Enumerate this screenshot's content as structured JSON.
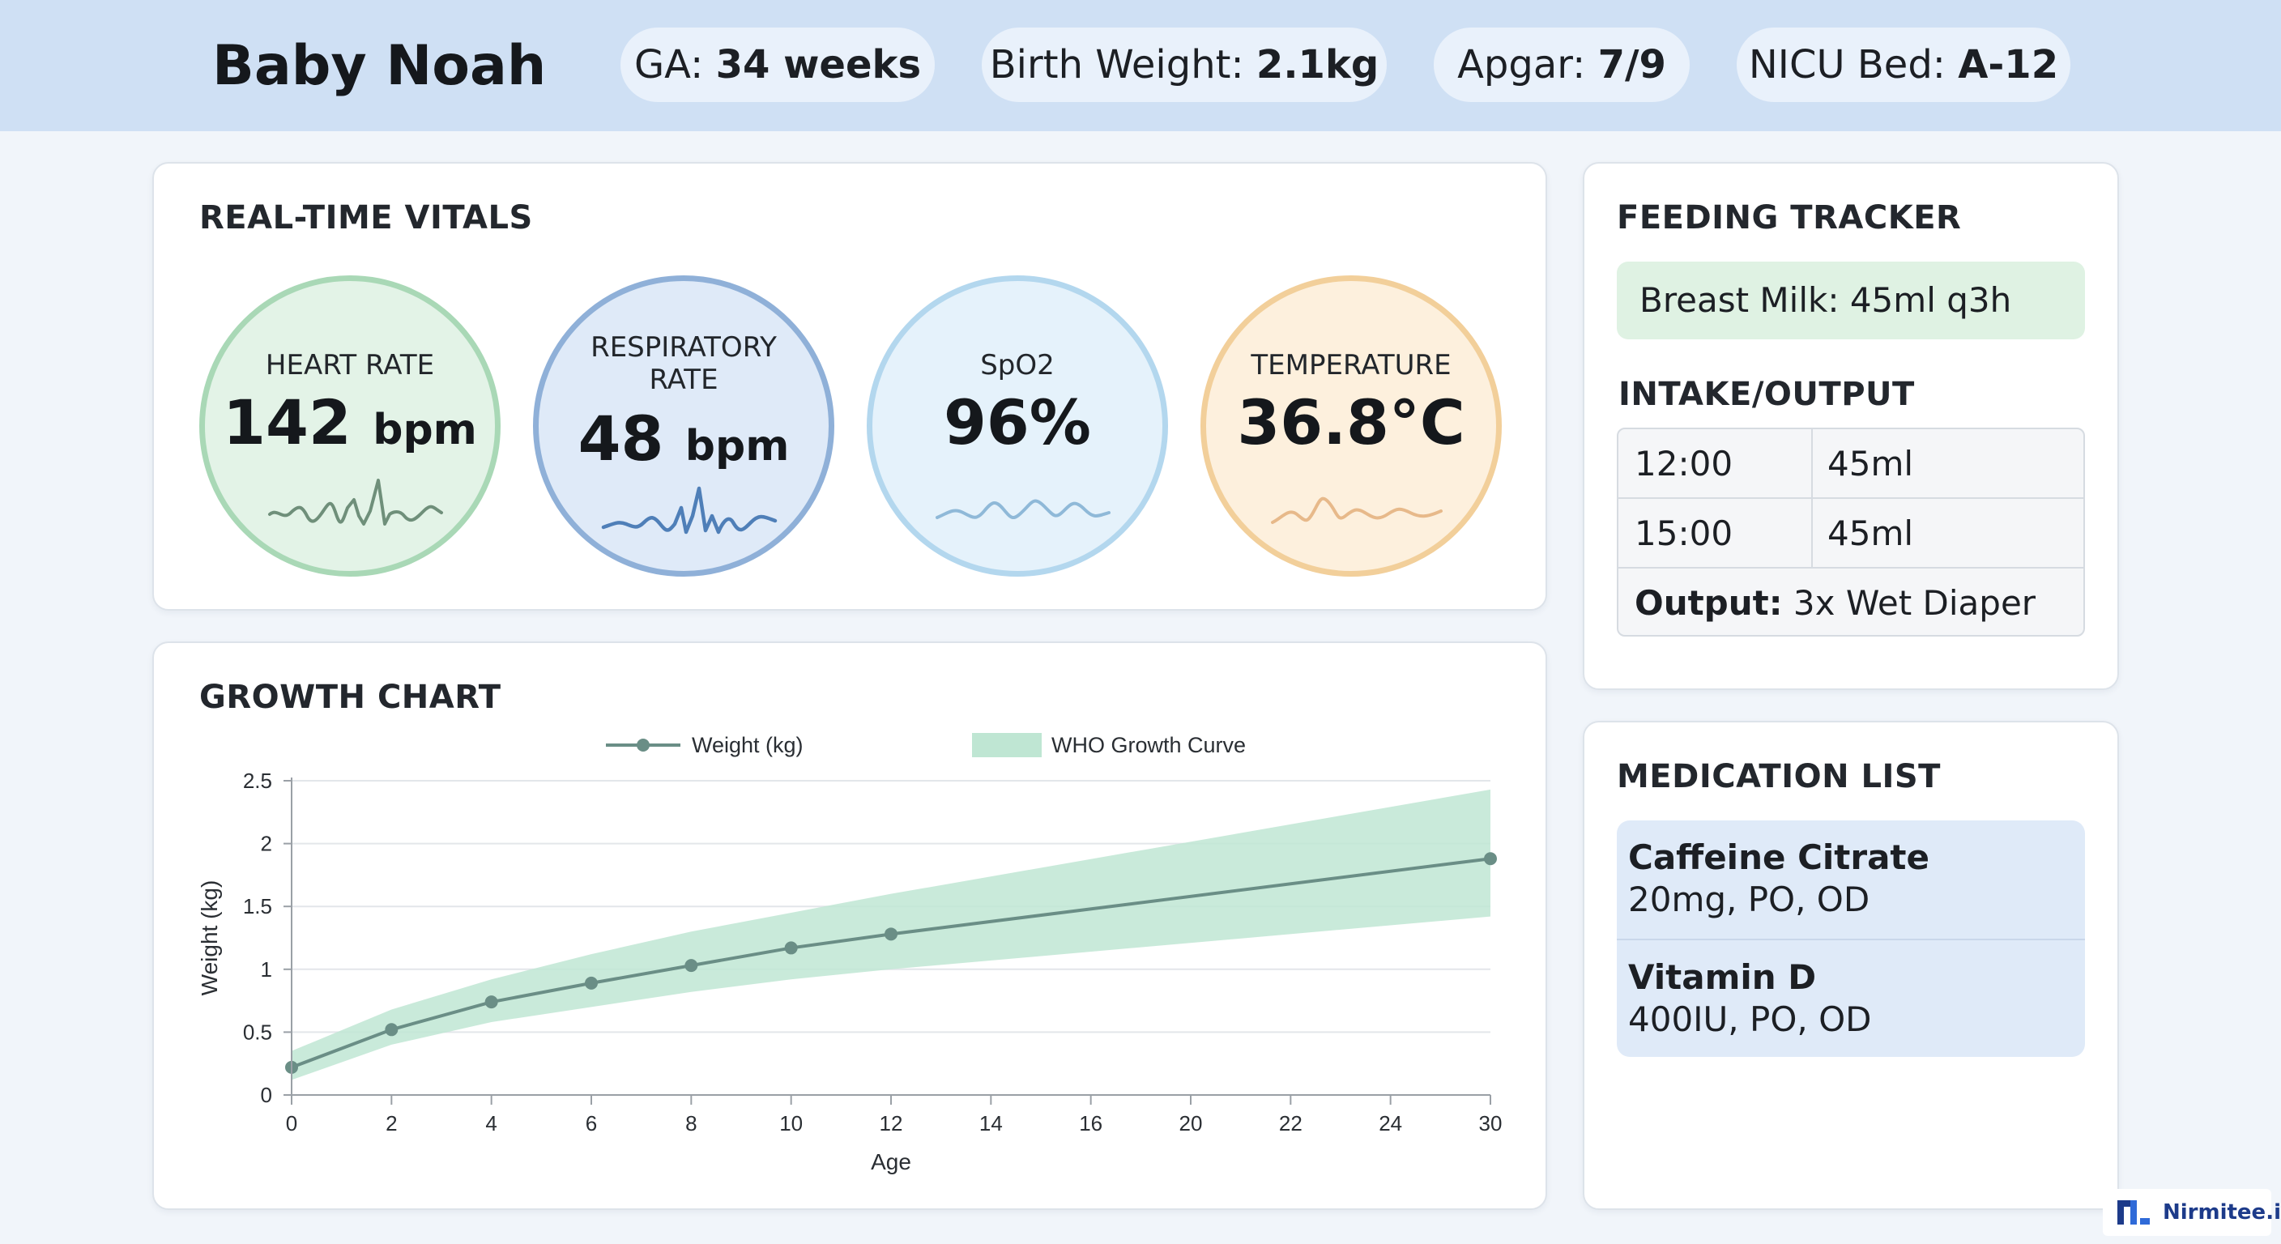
{
  "header": {
    "patient_name": "Baby Noah",
    "ga_label": "GA:",
    "ga_value": "34 weeks",
    "birth_weight_label": "Birth Weight:",
    "birth_weight_value": "2.1kg",
    "apgar_label": "Apgar:",
    "apgar_value": "7/9",
    "bed_label": "NICU Bed:",
    "bed_value": "A-12"
  },
  "vitals": {
    "title": "REAL-TIME VITALS",
    "heart_rate": {
      "label": "HEART RATE",
      "value": "142",
      "unit": "bpm",
      "color": "#a9d8b6",
      "fill": "#e3f3e7",
      "wave_color": "#6f8f7a"
    },
    "respiratory_rate": {
      "label_line1": "RESPIRATORY",
      "label_line2": "RATE",
      "value": "48",
      "unit": "bpm",
      "color": "#8fb0d8",
      "fill": "#dfeaf8",
      "wave_color": "#4f7fb8"
    },
    "spo2": {
      "label": "SpO2",
      "value": "96%",
      "color": "#b3d7ee",
      "fill": "#e5f2fb",
      "wave_color": "#8fb9d8"
    },
    "temperature": {
      "label": "TEMPERATURE",
      "value": "36.8°C",
      "color": "#f2cf9a",
      "fill": "#fdf0dd",
      "wave_color": "#e7b98a"
    }
  },
  "growth": {
    "title": "GROWTH CHART"
  },
  "chart_data": {
    "type": "line",
    "xlabel": "Age",
    "ylabel": "Weight (kg)",
    "x_ticks": [
      0,
      2,
      4,
      6,
      8,
      10,
      12,
      14,
      16,
      20,
      22,
      24,
      30
    ],
    "y_ticks": [
      0,
      0.5,
      1,
      1.5,
      2,
      2.5
    ],
    "ylim": [
      0,
      2.5
    ],
    "grid": true,
    "legend_position": "top",
    "series": [
      {
        "name": "Weight (kg)",
        "x": [
          0,
          2,
          4,
          6,
          8,
          10,
          12,
          30
        ],
        "values": [
          0.22,
          0.52,
          0.74,
          0.89,
          1.03,
          1.17,
          1.28,
          1.88
        ],
        "color": "#6a8e86"
      }
    ],
    "band": {
      "name": "WHO Growth Curve",
      "x": [
        0,
        2,
        4,
        6,
        8,
        10,
        12,
        30
      ],
      "upper": [
        0.35,
        0.68,
        0.92,
        1.12,
        1.3,
        1.45,
        1.6,
        2.43
      ],
      "lower": [
        0.12,
        0.4,
        0.58,
        0.7,
        0.82,
        0.92,
        1.0,
        1.42
      ],
      "color": "#bfe6d3"
    }
  },
  "feeding": {
    "title": "FEEDING TRACKER",
    "current": "Breast Milk: 45ml q3h",
    "io_title": "INTAKE/OUTPUT",
    "rows": [
      {
        "time": "12:00",
        "amount": "45ml"
      },
      {
        "time": "15:00",
        "amount": "45ml"
      }
    ],
    "output_label": "Output:",
    "output_value": "3x Wet Diaper"
  },
  "medications": {
    "title": "MEDICATION LIST",
    "items": [
      {
        "name": "Caffeine Citrate",
        "dose": "20mg, PO, OD"
      },
      {
        "name": "Vitamin D",
        "dose": "400IU, PO, OD"
      }
    ]
  },
  "brand": {
    "text": "Nirmitee.io"
  }
}
